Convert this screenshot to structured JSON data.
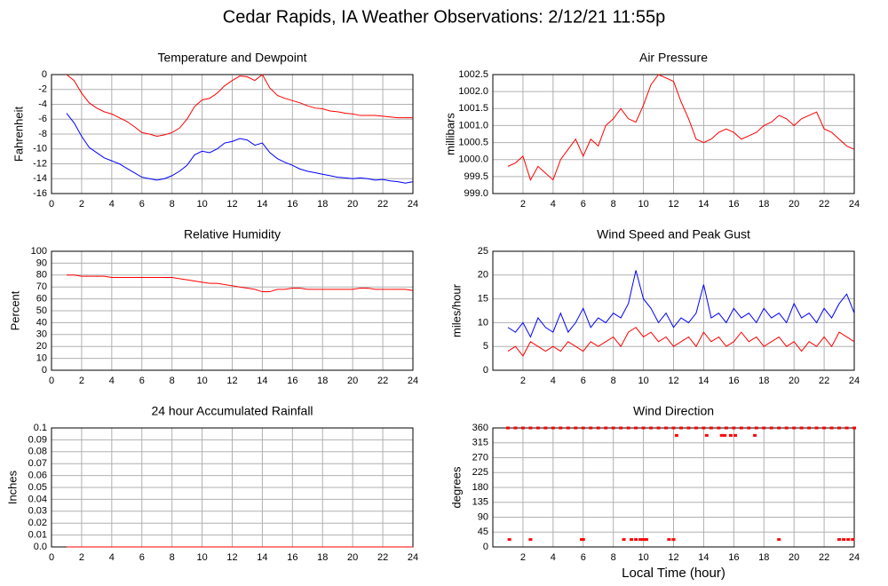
{
  "title": "Cedar Rapids, IA Weather Observations: 2/12/21 11:55p",
  "chart_data": [
    {
      "type": "line",
      "title": "Temperature and Dewpoint",
      "ylabel": "Fahrenheit",
      "grid": true,
      "xlim": [
        0,
        24
      ],
      "xticks": [
        0,
        2,
        4,
        6,
        8,
        10,
        12,
        14,
        16,
        18,
        20,
        22,
        24
      ],
      "ylim": [
        -16,
        0
      ],
      "yticks": [
        -16,
        -14,
        -12,
        -10,
        -8,
        -6,
        -4,
        -2,
        0
      ],
      "x": [
        1,
        1.5,
        2,
        2.5,
        3,
        3.5,
        4,
        4.5,
        5,
        5.5,
        6,
        6.5,
        7,
        7.5,
        8,
        8.5,
        9,
        9.5,
        10,
        10.5,
        11,
        11.5,
        12,
        12.5,
        13,
        13.5,
        14,
        14.5,
        15,
        15.5,
        16,
        16.5,
        17,
        17.5,
        18,
        18.5,
        19,
        19.5,
        20,
        20.5,
        21,
        21.5,
        22,
        22.5,
        23,
        23.5,
        24
      ],
      "series": [
        {
          "color": "#ff0000",
          "values": [
            0,
            -0.8,
            -2.5,
            -3.8,
            -4.5,
            -5,
            -5.3,
            -5.8,
            -6.3,
            -7,
            -7.8,
            -8,
            -8.3,
            -8.1,
            -7.8,
            -7.2,
            -6,
            -4.3,
            -3.4,
            -3.2,
            -2.5,
            -1.5,
            -0.8,
            -0.2,
            -0.3,
            -0.8,
            0,
            -1.8,
            -2.8,
            -3.2,
            -3.5,
            -3.8,
            -4.2,
            -4.5,
            -4.6,
            -4.9,
            -5,
            -5.2,
            -5.3,
            -5.5,
            -5.5,
            -5.5,
            -5.6,
            -5.7,
            -5.8,
            -5.8,
            -5.8
          ]
        },
        {
          "color": "#0000ff",
          "values": [
            -5.2,
            -6.5,
            -8.3,
            -9.8,
            -10.5,
            -11.2,
            -11.6,
            -12,
            -12.6,
            -13.2,
            -13.8,
            -14,
            -14.2,
            -14,
            -13.6,
            -13,
            -12.2,
            -10.8,
            -10.3,
            -10.5,
            -10,
            -9.2,
            -9,
            -8.6,
            -8.8,
            -9.5,
            -9.2,
            -10.5,
            -11.3,
            -11.8,
            -12.2,
            -12.7,
            -13,
            -13.2,
            -13.4,
            -13.6,
            -13.8,
            -13.9,
            -14,
            -13.9,
            -14,
            -14.2,
            -14.1,
            -14.3,
            -14.4,
            -14.6,
            -14.4
          ]
        }
      ]
    },
    {
      "type": "line",
      "title": "Air Pressure",
      "ylabel": "millibars",
      "grid": true,
      "xlim": [
        0,
        24
      ],
      "xticks": [
        2,
        4,
        6,
        8,
        10,
        12,
        14,
        16,
        18,
        20,
        22,
        24
      ],
      "ylim": [
        999,
        1002.5
      ],
      "yticks": [
        {
          "value": 999,
          "label": "999.0"
        },
        999.5,
        {
          "value": 1000,
          "label": "1000.0"
        },
        1000.5,
        {
          "value": 1001,
          "label": "1001.0"
        },
        1001.5,
        {
          "value": 1002,
          "label": "1002.0"
        },
        1002.5
      ],
      "x": [
        1,
        1.5,
        2,
        2.5,
        3,
        3.5,
        4,
        4.5,
        5,
        5.5,
        6,
        6.5,
        7,
        7.5,
        8,
        8.5,
        9,
        9.5,
        10,
        10.5,
        11,
        11.5,
        12,
        12.5,
        13,
        13.5,
        14,
        14.5,
        15,
        15.5,
        16,
        16.5,
        17,
        17.5,
        18,
        18.5,
        19,
        19.5,
        20,
        20.5,
        21,
        21.5,
        22,
        22.5,
        23,
        23.5,
        24
      ],
      "series": [
        {
          "color": "#ff0000",
          "values": [
            999.8,
            999.9,
            1000.1,
            999.4,
            999.8,
            999.6,
            999.4,
            1000,
            1000.3,
            1000.6,
            1000.1,
            1000.6,
            1000.4,
            1001,
            1001.2,
            1001.5,
            1001.2,
            1001.1,
            1001.6,
            1002.2,
            1002.5,
            1002.4,
            1002.3,
            1001.7,
            1001.2,
            1000.6,
            1000.5,
            1000.6,
            1000.8,
            1000.9,
            1000.8,
            1000.6,
            1000.7,
            1000.8,
            1001,
            1001.1,
            1001.3,
            1001.2,
            1001,
            1001.2,
            1001.3,
            1001.4,
            1000.9,
            1000.8,
            1000.6,
            1000.4,
            1000.3
          ]
        }
      ]
    },
    {
      "type": "line",
      "title": "Relative Humidity",
      "ylabel": "Percent",
      "grid": true,
      "xlim": [
        0,
        24
      ],
      "xticks": [
        0,
        2,
        4,
        6,
        8,
        10,
        12,
        14,
        16,
        18,
        20,
        22,
        24
      ],
      "ylim": [
        0,
        100
      ],
      "yticks": [
        0,
        10,
        20,
        30,
        40,
        50,
        60,
        70,
        80,
        90,
        100
      ],
      "x": [
        1,
        1.5,
        2,
        2.5,
        3,
        3.5,
        4,
        4.5,
        5,
        5.5,
        6,
        6.5,
        7,
        7.5,
        8,
        8.5,
        9,
        9.5,
        10,
        10.5,
        11,
        11.5,
        12,
        12.5,
        13,
        13.5,
        14,
        14.5,
        15,
        15.5,
        16,
        16.5,
        17,
        17.5,
        18,
        18.5,
        19,
        19.5,
        20,
        20.5,
        21,
        21.5,
        22,
        22.5,
        23,
        23.5,
        24
      ],
      "series": [
        {
          "color": "#ff0000",
          "values": [
            80,
            80,
            79,
            79,
            79,
            79,
            78,
            78,
            78,
            78,
            78,
            78,
            78,
            78,
            78,
            77,
            76,
            75,
            74,
            73,
            73,
            72,
            71,
            70,
            69,
            68,
            66,
            66,
            68,
            68,
            69,
            69,
            68,
            68,
            68,
            68,
            68,
            68,
            68,
            69,
            69,
            68,
            68,
            68,
            68,
            68,
            67
          ]
        }
      ]
    },
    {
      "type": "line",
      "title": "Wind Speed and Peak Gust",
      "ylabel": "miles/hour",
      "grid": true,
      "xlim": [
        0,
        24
      ],
      "xticks": [
        2,
        4,
        6,
        8,
        10,
        12,
        14,
        16,
        18,
        20,
        22,
        24
      ],
      "ylim": [
        0,
        25
      ],
      "yticks": [
        0,
        5,
        10,
        15,
        20,
        25
      ],
      "x": [
        1,
        1.5,
        2,
        2.5,
        3,
        3.5,
        4,
        4.5,
        5,
        5.5,
        6,
        6.5,
        7,
        7.5,
        8,
        8.5,
        9,
        9.5,
        10,
        10.5,
        11,
        11.5,
        12,
        12.5,
        13,
        13.5,
        14,
        14.5,
        15,
        15.5,
        16,
        16.5,
        17,
        17.5,
        18,
        18.5,
        19,
        19.5,
        20,
        20.5,
        21,
        21.5,
        22,
        22.5,
        23,
        23.5,
        24
      ],
      "series": [
        {
          "color": "#0000ff",
          "values": [
            9,
            8,
            10,
            7,
            11,
            9,
            8,
            12,
            8,
            10,
            13,
            9,
            11,
            10,
            12,
            11,
            14,
            21,
            15,
            13,
            10,
            12,
            9,
            11,
            10,
            12,
            18,
            11,
            12,
            10,
            13,
            11,
            12,
            10,
            13,
            11,
            12,
            10,
            14,
            11,
            12,
            10,
            13,
            11,
            14,
            16,
            12
          ]
        },
        {
          "color": "#ff0000",
          "values": [
            4,
            5,
            3,
            6,
            5,
            4,
            5,
            4,
            6,
            5,
            4,
            6,
            5,
            6,
            7,
            5,
            8,
            9,
            7,
            8,
            6,
            7,
            5,
            6,
            7,
            5,
            8,
            6,
            7,
            5,
            6,
            8,
            6,
            7,
            5,
            6,
            7,
            5,
            6,
            4,
            6,
            5,
            7,
            5,
            8,
            7,
            6
          ]
        }
      ]
    },
    {
      "type": "line",
      "title": "24 hour Accumulated Rainfall",
      "ylabel": "Inches",
      "grid": true,
      "xlim": [
        0,
        24
      ],
      "xticks": [
        0,
        2,
        4,
        6,
        8,
        10,
        12,
        14,
        16,
        18,
        20,
        22,
        24
      ],
      "ylim": [
        0,
        0.1
      ],
      "yticks": [
        {
          "value": 0,
          "label": "0.0"
        },
        0.01,
        0.02,
        0.03,
        0.04,
        0.05,
        0.06,
        0.07,
        0.08,
        0.09,
        0.1
      ],
      "x": [
        1,
        4,
        8,
        12,
        16,
        20,
        24
      ],
      "series": [
        {
          "color": "#ff0000",
          "values": [
            0,
            0,
            0,
            0,
            0,
            0,
            0
          ]
        }
      ]
    },
    {
      "type": "scatter",
      "title": "Wind Direction",
      "ylabel": "degrees",
      "xlabel": "Local Time (hour)",
      "grid": true,
      "xlim": [
        0,
        24
      ],
      "xticks": [
        2,
        4,
        6,
        8,
        10,
        12,
        14,
        16,
        18,
        20,
        22,
        24
      ],
      "ylim": [
        0,
        360
      ],
      "yticks": [
        0,
        45,
        90,
        135,
        180,
        225,
        270,
        315,
        360
      ],
      "x": [
        1,
        1.5,
        2,
        2.5,
        3,
        3.5,
        4,
        4.5,
        5,
        5.5,
        6,
        6.5,
        7,
        7.5,
        8,
        8.5,
        9,
        9.5,
        10,
        10.5,
        11,
        11.5,
        12,
        12.5,
        13,
        13.5,
        14,
        14.5,
        15,
        15.5,
        16,
        16.5,
        17,
        17.5,
        18,
        18.5,
        19,
        19.5,
        20,
        20.5,
        21,
        21.5,
        22,
        22.5,
        23,
        23.5,
        24,
        1.1,
        2.5,
        5.9,
        6,
        8.7,
        9.2,
        9.5,
        9.8,
        10,
        10.2,
        11.7,
        12,
        19,
        23,
        23.3,
        23.6,
        23.9,
        12.2,
        14.2,
        15.2,
        15.4,
        15.8,
        16.1,
        17.4
      ],
      "series": [
        {
          "color": "#ff0000",
          "values": [
            360,
            360,
            360,
            360,
            360,
            360,
            360,
            360,
            360,
            360,
            360,
            360,
            360,
            360,
            360,
            360,
            360,
            360,
            360,
            360,
            360,
            360,
            360,
            360,
            360,
            360,
            360,
            360,
            360,
            360,
            360,
            360,
            360,
            360,
            360,
            360,
            360,
            360,
            360,
            360,
            360,
            360,
            360,
            360,
            360,
            360,
            360,
            22.5,
            22.5,
            22.5,
            22.5,
            22.5,
            22.5,
            22.5,
            22.5,
            22.5,
            22.5,
            22.5,
            22.5,
            22.5,
            22.5,
            22.5,
            22.5,
            22.5,
            337.5,
            337.5,
            337.5,
            337.5,
            337.5,
            337.5,
            337.5
          ]
        }
      ]
    }
  ]
}
